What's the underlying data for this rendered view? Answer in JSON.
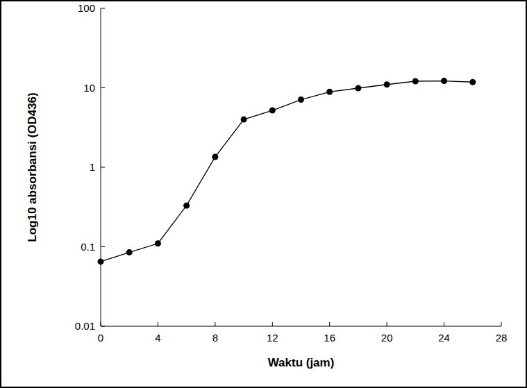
{
  "chart_data": {
    "type": "line",
    "x_label": "Waktu (jam)",
    "y_label": "Log10 absorbansi (OD436)",
    "x": [
      0,
      2,
      4,
      6,
      8,
      10,
      12,
      14,
      16,
      18,
      20,
      22,
      24,
      26
    ],
    "values": [
      0.065,
      0.085,
      0.11,
      0.33,
      1.35,
      4.0,
      5.2,
      7.1,
      8.9,
      9.9,
      11.0,
      12.1,
      12.2,
      11.8
    ],
    "color": "#000000",
    "marker": "circle",
    "line_style": "solid",
    "log": "y",
    "grid": false,
    "xlim": [
      0,
      28
    ],
    "xticks": [
      0,
      4,
      8,
      12,
      16,
      20,
      24,
      28
    ],
    "ylim": [
      0.01,
      100
    ],
    "yticks": [
      0.01,
      0.1,
      1,
      10,
      100
    ]
  }
}
